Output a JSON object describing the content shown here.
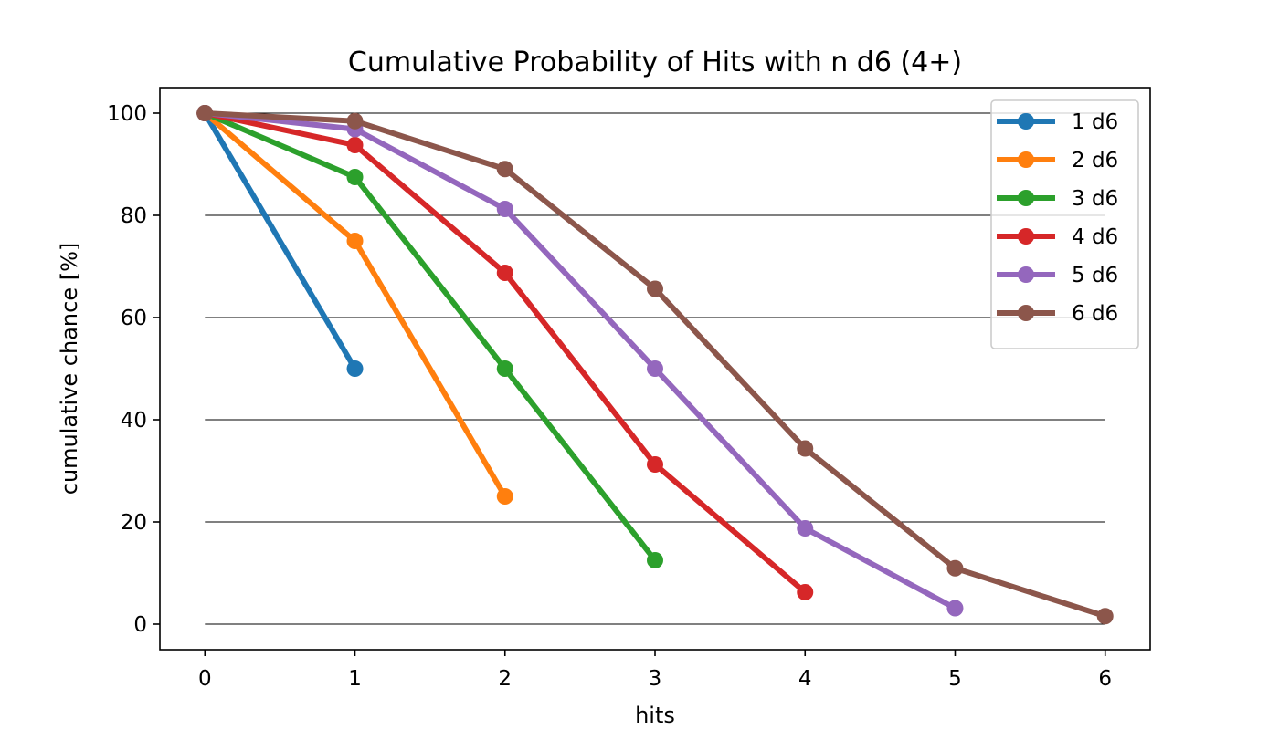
{
  "chart_data": {
    "type": "line",
    "title": "Cumulative Probability of Hits with n d6 (4+)",
    "xlabel": "hits",
    "ylabel": "cumulative chance [%]",
    "xlim": [
      -0.3,
      6.3
    ],
    "ylim": [
      -5,
      105
    ],
    "xticks": [
      0,
      1,
      2,
      3,
      4,
      5,
      6
    ],
    "yticks": [
      0,
      20,
      40,
      60,
      80,
      100
    ],
    "grid": "horizontal",
    "legend": "top-right",
    "series": [
      {
        "name": "1 d6",
        "color": "#1f77b4",
        "x": [
          0,
          1
        ],
        "y": [
          100,
          50
        ]
      },
      {
        "name": "2 d6",
        "color": "#ff7f0e",
        "x": [
          0,
          1,
          2
        ],
        "y": [
          100,
          75,
          25
        ]
      },
      {
        "name": "3 d6",
        "color": "#2ca02c",
        "x": [
          0,
          1,
          2,
          3
        ],
        "y": [
          100,
          87.5,
          50,
          12.5
        ]
      },
      {
        "name": "4 d6",
        "color": "#d62728",
        "x": [
          0,
          1,
          2,
          3,
          4
        ],
        "y": [
          100,
          93.75,
          68.75,
          31.25,
          6.25
        ]
      },
      {
        "name": "5 d6",
        "color": "#9467bd",
        "x": [
          0,
          1,
          2,
          3,
          4,
          5
        ],
        "y": [
          100,
          96.875,
          81.25,
          50,
          18.75,
          3.125
        ]
      },
      {
        "name": "6 d6",
        "color": "#8c564b",
        "x": [
          0,
          1,
          2,
          3,
          4,
          5,
          6
        ],
        "y": [
          100,
          98.4375,
          89.0625,
          65.625,
          34.375,
          10.9375,
          1.5625
        ]
      }
    ]
  }
}
